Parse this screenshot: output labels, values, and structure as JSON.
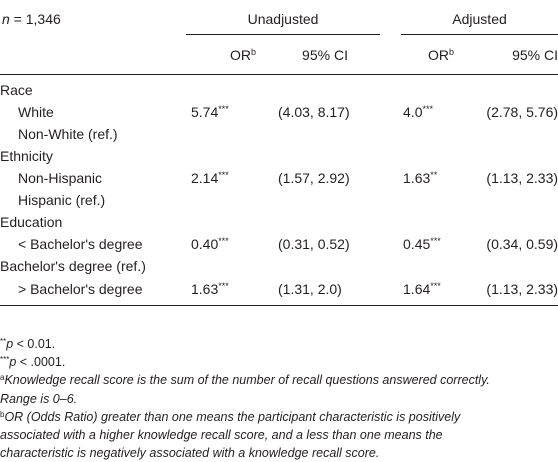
{
  "header": {
    "n_label": "n = 1,346",
    "n_var": "n",
    "n_rest": " = 1,346",
    "groups": [
      "Unadjusted",
      "Adjusted"
    ],
    "or_label": "OR",
    "or_sup": "b",
    "ci_label": "95% CI"
  },
  "rows": [
    {
      "type": "category",
      "label": "Race"
    },
    {
      "type": "level",
      "label": "White",
      "unadj_or": "5.74",
      "unadj_sig": "***",
      "unadj_ci": "(4.03, 8.17)",
      "adj_or": "4.0",
      "adj_sig": "***",
      "adj_ci": "(2.78, 5.76)"
    },
    {
      "type": "level",
      "label": "Non-White (ref.)"
    },
    {
      "type": "category",
      "label": "Ethnicity"
    },
    {
      "type": "level",
      "label": "Non-Hispanic",
      "unadj_or": "2.14",
      "unadj_sig": "***",
      "unadj_ci": "(1.57, 2.92)",
      "adj_or": "1.63",
      "adj_sig": "**",
      "adj_ci": "(1.13, 2.33)"
    },
    {
      "type": "level",
      "label": "Hispanic (ref.)"
    },
    {
      "type": "category",
      "label": "Education"
    },
    {
      "type": "level",
      "label": "< Bachelor's degree",
      "unadj_or": "0.40",
      "unadj_sig": "***",
      "unadj_ci": "(0.31, 0.52)",
      "adj_or": "0.45",
      "adj_sig": "***",
      "adj_ci": "(0.34, 0.59)"
    },
    {
      "type": "category",
      "label": "Bachelor's degree (ref.)"
    },
    {
      "type": "level",
      "label": "> Bachelor's degree",
      "unadj_or": "1.63",
      "unadj_sig": "***",
      "unadj_ci": "(1.31, 2.0)",
      "adj_or": "1.64",
      "adj_sig": "***",
      "adj_ci": "(1.13, 2.33)"
    }
  ],
  "footnotes": {
    "p01_sym": "**",
    "p01_var": "p",
    "p01_rest": " < 0.01.",
    "p0001_sym": "***",
    "p0001_var": "p",
    "p0001_rest": " < .0001.",
    "a_sup": "a",
    "a_line1": "Knowledge recall score is the sum of the number of recall questions answered correctly.",
    "a_line2": "Range is 0–6.",
    "b_sup": "b",
    "b_line1": "OR (Odds Ratio) greater than one means the participant characteristic is positively",
    "b_line2": "associated with a higher knowledge recall score, and a less than one means the",
    "b_line3": "characteristic is negatively associated with a knowledge recall score."
  }
}
